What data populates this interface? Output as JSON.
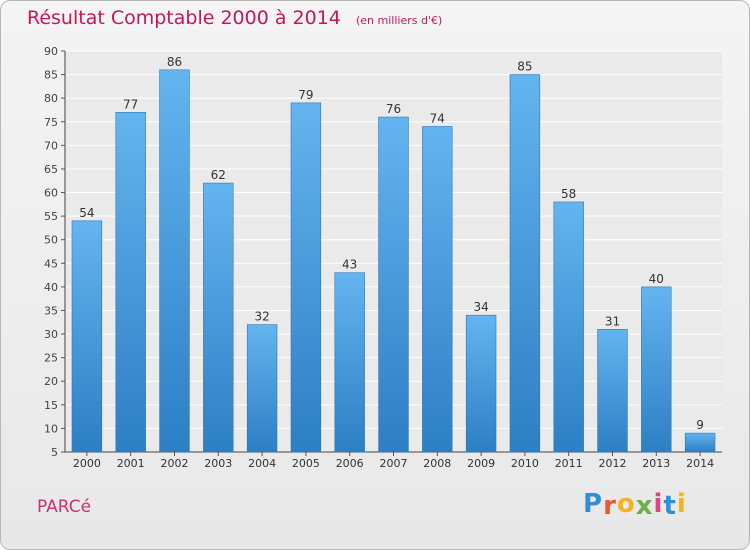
{
  "chart_data": {
    "type": "bar",
    "title": "Résultat Comptable 2000 à 2014",
    "subtitle": "(en milliers d'€)",
    "categories": [
      "2000",
      "2001",
      "2002",
      "2003",
      "2004",
      "2005",
      "2006",
      "2007",
      "2008",
      "2009",
      "2010",
      "2011",
      "2012",
      "2013",
      "2014"
    ],
    "values": [
      54,
      77,
      86,
      62,
      32,
      79,
      43,
      76,
      74,
      34,
      85,
      58,
      31,
      40,
      9
    ],
    "ylim": [
      5,
      90
    ],
    "yticks": [
      5,
      10,
      15,
      20,
      25,
      30,
      35,
      40,
      45,
      50,
      55,
      60,
      65,
      70,
      75,
      80,
      85,
      90
    ],
    "xlabel": "",
    "ylabel": "",
    "grid": true,
    "bar_color_top": "#64b4ef",
    "bar_color_bottom": "#2d7fc4"
  },
  "footer": {
    "commune": "PARCé"
  },
  "brand": {
    "letters": [
      "P",
      "r",
      "o",
      "x",
      "i",
      "t",
      "i"
    ],
    "colors": [
      "#2f8fd6",
      "#e85a2c",
      "#f0b323",
      "#6ab04c",
      "#e0457b",
      "#2f8fd6",
      "#f0b323"
    ]
  }
}
